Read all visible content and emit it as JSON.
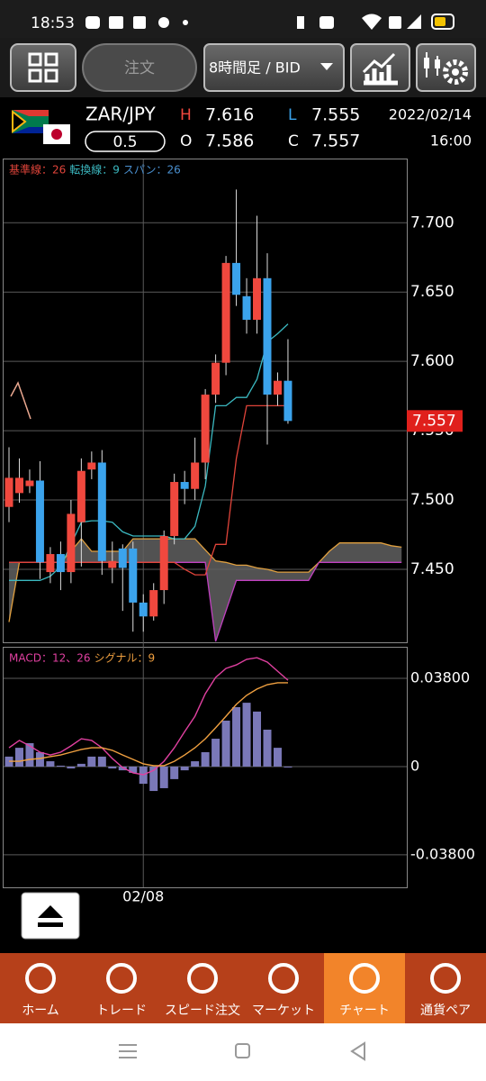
{
  "status_bar": {
    "time": "18:53"
  },
  "toolbar": {
    "order_button": "注文",
    "timeframe": "8時間足 / BID"
  },
  "quote": {
    "pair": "ZAR/JPY",
    "spread": "0.5",
    "high_label": "H",
    "high": "7.616",
    "low_label": "L",
    "low": "7.555",
    "open_label": "O",
    "open": "7.586",
    "close_label": "C",
    "close": "7.557",
    "date": "2022/02/14",
    "time": "16:00"
  },
  "chart_data": [
    {
      "type": "candlestick",
      "categories": [
        null,
        null,
        null,
        null,
        null,
        null,
        null,
        null,
        null,
        null,
        null,
        null,
        null,
        "02/08",
        null,
        null,
        null,
        null,
        null,
        null,
        null,
        null,
        null,
        null,
        null,
        null,
        null,
        null
      ],
      "open": [
        7.495,
        7.505,
        7.51,
        7.514,
        7.448,
        7.461,
        7.448,
        7.484,
        7.522,
        7.527,
        7.451,
        7.465,
        7.465,
        7.426,
        7.416,
        7.435,
        7.474,
        7.513,
        7.508,
        7.527,
        7.576,
        7.599,
        7.671,
        7.647,
        7.63,
        7.66,
        7.576,
        7.586
      ],
      "high": [
        7.538,
        7.53,
        7.522,
        7.528,
        7.466,
        7.47,
        7.5,
        7.53,
        7.535,
        7.536,
        7.47,
        7.468,
        7.47,
        7.432,
        7.44,
        7.478,
        7.519,
        7.521,
        7.545,
        7.58,
        7.605,
        7.676,
        7.724,
        7.66,
        7.705,
        7.678,
        7.592,
        7.616
      ],
      "low": [
        7.484,
        7.498,
        7.505,
        7.443,
        7.44,
        7.435,
        7.44,
        7.452,
        7.515,
        7.446,
        7.44,
        7.42,
        7.405,
        7.405,
        7.413,
        7.425,
        7.468,
        7.497,
        7.5,
        7.515,
        7.57,
        7.59,
        7.64,
        7.62,
        7.62,
        7.54,
        7.568,
        7.555
      ],
      "close": [
        7.516,
        7.516,
        7.514,
        7.455,
        7.461,
        7.448,
        7.49,
        7.521,
        7.527,
        7.456,
        7.456,
        7.451,
        7.426,
        7.416,
        7.435,
        7.474,
        7.513,
        7.508,
        7.527,
        7.576,
        7.599,
        7.671,
        7.648,
        7.63,
        7.66,
        7.576,
        7.586,
        7.557
      ],
      "up_color": "#f0483e",
      "down_color": "#3ba3ec",
      "current_price": 7.557,
      "current_price_color": "#e0201c",
      "ylim": [
        7.398,
        7.745
      ],
      "yticks": [
        {
          "value": 7.45,
          "label": "7.450"
        },
        {
          "value": 7.5,
          "label": "7.500"
        },
        {
          "value": 7.55,
          "label": "7.550"
        },
        {
          "value": 7.6,
          "label": "7.600"
        },
        {
          "value": 7.65,
          "label": "7.650"
        },
        {
          "value": 7.7,
          "label": "7.700"
        }
      ],
      "grid": true,
      "series": [
        {
          "name": "基準線：26",
          "color": "#e0443a",
          "values": [
            7.455,
            7.455,
            7.455,
            7.455,
            7.455,
            7.455,
            7.455,
            7.455,
            7.455,
            7.455,
            7.455,
            7.455,
            7.455,
            7.455,
            7.455,
            7.455,
            7.455,
            7.45,
            7.446,
            7.446,
            7.468,
            7.468,
            7.53,
            7.568,
            7.568,
            7.568,
            7.568,
            7.568
          ]
        },
        {
          "name": "転換線：9",
          "color": "#3bb8c0",
          "values": [
            7.442,
            7.442,
            7.442,
            7.442,
            7.445,
            7.452,
            7.468,
            7.484,
            7.485,
            7.485,
            7.484,
            7.477,
            7.474,
            7.474,
            7.474,
            7.474,
            7.472,
            7.472,
            7.481,
            7.51,
            7.568,
            7.568,
            7.574,
            7.574,
            7.587,
            7.614,
            7.62,
            7.627
          ]
        }
      ],
      "cloud": {
        "name": "スパン：26",
        "legend_color": "#4a90d0",
        "color_a": "#e0a040",
        "color_b": "#c040c0",
        "fill": "#606060",
        "span_a": [
          7.412,
          7.455,
          7.455,
          7.455,
          7.455,
          7.455,
          7.463,
          7.472,
          7.463,
          7.463,
          7.463,
          7.463,
          7.472,
          7.472,
          7.472,
          7.472,
          7.472,
          7.472,
          7.472,
          7.464,
          7.456,
          7.455,
          7.453,
          7.453,
          7.451,
          7.45,
          7.448,
          7.448,
          7.448,
          7.448,
          7.455,
          7.463,
          7.469,
          7.469,
          7.469,
          7.469,
          7.469,
          7.467,
          7.466
        ],
        "span_b": [
          7.455,
          7.455,
          7.455,
          7.455,
          7.455,
          7.455,
          7.455,
          7.455,
          7.455,
          7.455,
          7.455,
          7.455,
          7.455,
          7.455,
          7.455,
          7.455,
          7.455,
          7.455,
          7.455,
          7.455,
          7.398,
          7.42,
          7.442,
          7.442,
          7.442,
          7.442,
          7.442,
          7.442,
          7.442,
          7.442,
          7.455,
          7.455,
          7.455,
          7.455,
          7.455,
          7.455,
          7.455,
          7.455,
          7.455
        ]
      }
    },
    {
      "type": "macd",
      "ylim": [
        -0.052,
        0.0516
      ],
      "yticks": [
        {
          "value": 0.038,
          "label": "0.03800"
        },
        0,
        {
          "value": -0.038,
          "label": "-0.03800"
        }
      ],
      "grid": true,
      "histogram": {
        "color": "#7a78b8",
        "values": [
          0.0043,
          0.0081,
          0.0101,
          0.0062,
          0.0023,
          0.0004,
          -0.0008,
          0.0012,
          0.0043,
          0.0043,
          -0.0008,
          -0.0016,
          -0.0027,
          -0.0074,
          -0.0105,
          -0.0093,
          -0.0054,
          -0.0016,
          0.0023,
          0.0062,
          0.012,
          0.0198,
          0.0256,
          0.0275,
          0.0237,
          0.0159,
          0.0081,
          -0.0004
        ]
      },
      "series": [
        {
          "name": "MACD：12、26",
          "color": "#e040a0",
          "values": [
            0.0081,
            0.0113,
            0.0089,
            0.0062,
            0.005,
            0.0062,
            0.0089,
            0.012,
            0.0113,
            0.0081,
            0.0035,
            -0.0004,
            -0.0027,
            -0.0035,
            -0.0016,
            0.0023,
            0.0081,
            0.0151,
            0.0217,
            0.0314,
            0.0384,
            0.0423,
            0.0438,
            0.0462,
            0.0469,
            0.045,
            0.0411,
            0.0372
          ]
        },
        {
          "name": "シグナル：9",
          "color": "#f0a040",
          "values": [
            0.0023,
            0.0023,
            0.0031,
            0.0035,
            0.0043,
            0.005,
            0.0062,
            0.0074,
            0.0081,
            0.0081,
            0.007,
            0.005,
            0.0031,
            0.0012,
            0.0004,
            0.0004,
            0.0023,
            0.005,
            0.0081,
            0.012,
            0.0167,
            0.0217,
            0.0268,
            0.0307,
            0.0334,
            0.0353,
            0.0361,
            0.0361
          ]
        }
      ]
    }
  ],
  "nav": {
    "items": [
      "ホーム",
      "トレード",
      "スピード注文",
      "マーケット",
      "チャート",
      "通貨ペア"
    ],
    "selected": 4
  }
}
